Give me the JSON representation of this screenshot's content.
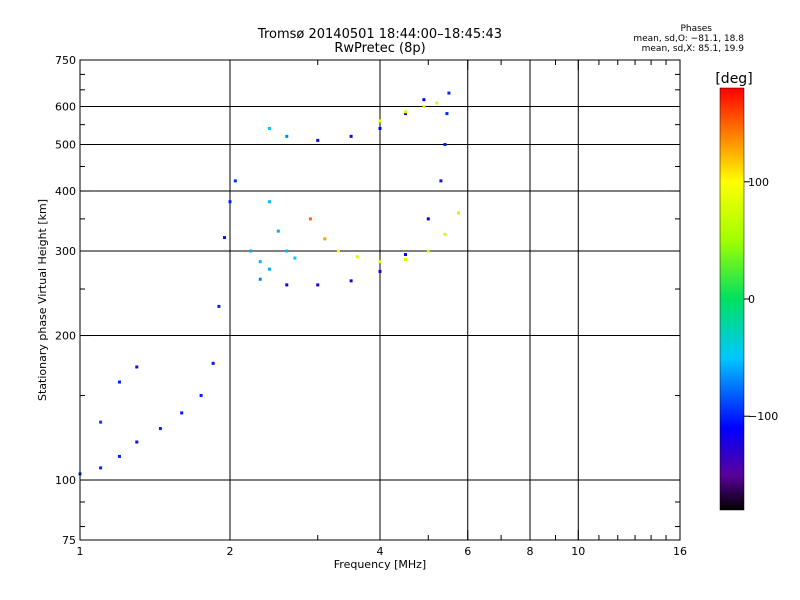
{
  "header": {
    "title": "Tromsø 20140501 18:44:00–18:45:43",
    "subtitle": "RwPretec (8p)"
  },
  "stats": {
    "heading": "Phases",
    "line_o": "mean, sd,O: −81.1, 18.8",
    "line_x": "mean, sd,X:  85.1, 19.9"
  },
  "colorbar": {
    "label": "[deg]",
    "range": [
      -180,
      180
    ],
    "ticks": [
      {
        "value": 100,
        "label": "100"
      },
      {
        "value": 0,
        "label": "0"
      },
      {
        "value": -100,
        "label": "−100"
      }
    ]
  },
  "chart_data": {
    "type": "scatter",
    "xlabel": "Frequency [MHz]",
    "ylabel": "Stationary phase Virtual Height [km]",
    "xscale": "log",
    "yscale": "log",
    "xlim": [
      1,
      16
    ],
    "ylim": [
      75,
      750
    ],
    "grid": true,
    "x_ticks": [
      {
        "value": 1,
        "label": "1"
      },
      {
        "value": 2,
        "label": "2"
      },
      {
        "value": 4,
        "label": "4"
      },
      {
        "value": 6,
        "label": "6"
      },
      {
        "value": 8,
        "label": "8"
      },
      {
        "value": 10,
        "label": "10"
      },
      {
        "value": 16,
        "label": "16"
      }
    ],
    "x_minor": [
      3,
      5,
      7,
      9,
      11,
      12,
      13,
      14,
      15
    ],
    "y_ticks": [
      {
        "value": 75,
        "label": "75"
      },
      {
        "value": 100,
        "label": "100"
      },
      {
        "value": 200,
        "label": "200"
      },
      {
        "value": 300,
        "label": "300"
      },
      {
        "value": 400,
        "label": "400"
      },
      {
        "value": 500,
        "label": "500"
      },
      {
        "value": 600,
        "label": "600"
      },
      {
        "value": 750,
        "label": "750"
      }
    ],
    "y_minor": [
      80,
      90,
      150,
      250,
      350,
      450,
      550,
      650,
      700
    ],
    "grid_x": [
      2,
      4,
      6,
      8,
      10
    ],
    "grid_y": [
      100,
      200,
      300,
      400,
      500,
      600
    ],
    "colormap": [
      {
        "value": -180,
        "color": "#000000"
      },
      {
        "value": -150,
        "color": "#5a009c"
      },
      {
        "value": -110,
        "color": "#0000ff"
      },
      {
        "value": -50,
        "color": "#00c8ff"
      },
      {
        "value": 0,
        "color": "#00e060"
      },
      {
        "value": 50,
        "color": "#a0ff00"
      },
      {
        "value": 100,
        "color": "#ffff00"
      },
      {
        "value": 140,
        "color": "#ff8000"
      },
      {
        "value": 180,
        "color": "#ff0000"
      }
    ],
    "traces": [
      {
        "mode": "O",
        "points": [
          [
            1.0,
            103,
            -95
          ],
          [
            1.1,
            106,
            -100
          ],
          [
            1.2,
            112,
            -100
          ],
          [
            1.3,
            120,
            -105
          ],
          [
            1.45,
            128,
            -100
          ],
          [
            1.6,
            138,
            -105
          ],
          [
            1.75,
            150,
            -100
          ],
          [
            1.85,
            175,
            -105
          ],
          [
            1.9,
            230,
            -100
          ],
          [
            1.95,
            320,
            -105
          ],
          [
            2.0,
            380,
            -100
          ],
          [
            2.05,
            420,
            -95
          ]
        ]
      },
      {
        "mode": "O",
        "points": [
          [
            1.1,
            132,
            -90
          ],
          [
            1.2,
            160,
            -100
          ],
          [
            1.3,
            172,
            -105
          ]
        ]
      },
      {
        "mode": "O",
        "points": [
          [
            2.3,
            262,
            -70
          ],
          [
            2.6,
            255,
            -110
          ],
          [
            3.0,
            255,
            -125
          ],
          [
            3.5,
            260,
            -130
          ],
          [
            4.0,
            272,
            -120
          ],
          [
            4.5,
            295,
            -110
          ],
          [
            5.0,
            350,
            -110
          ],
          [
            5.3,
            420,
            -105
          ],
          [
            5.4,
            500,
            -100
          ],
          [
            5.45,
            580,
            -100
          ],
          [
            5.5,
            640,
            -100
          ]
        ]
      },
      {
        "mode": "O",
        "points": [
          [
            2.4,
            540,
            -50
          ],
          [
            2.6,
            520,
            -70
          ],
          [
            3.0,
            510,
            -120
          ],
          [
            3.5,
            520,
            -125
          ],
          [
            4.0,
            540,
            -110
          ],
          [
            4.5,
            580,
            -120
          ],
          [
            4.9,
            620,
            -110
          ]
        ]
      },
      {
        "mode": "X",
        "points": [
          [
            2.9,
            350,
            150
          ],
          [
            3.1,
            318,
            130
          ],
          [
            3.3,
            300,
            100
          ],
          [
            3.6,
            292,
            80
          ],
          [
            4.0,
            285,
            85
          ],
          [
            4.5,
            288,
            75
          ],
          [
            5.0,
            300,
            70
          ],
          [
            5.4,
            325,
            75
          ],
          [
            5.75,
            360,
            70
          ]
        ]
      },
      {
        "mode": "X",
        "points": [
          [
            4.0,
            560,
            90
          ],
          [
            4.5,
            585,
            85
          ],
          [
            4.9,
            600,
            80
          ],
          [
            5.2,
            610,
            75
          ]
        ]
      },
      {
        "mode": "O",
        "points": [
          [
            2.4,
            380,
            -55
          ],
          [
            2.5,
            330,
            -60
          ],
          [
            2.6,
            300,
            -55
          ],
          [
            2.7,
            290,
            -50
          ]
        ]
      },
      {
        "mode": "O",
        "points": [
          [
            2.2,
            300,
            -60
          ],
          [
            2.3,
            285,
            -55
          ],
          [
            2.4,
            275,
            -60
          ]
        ]
      }
    ]
  }
}
